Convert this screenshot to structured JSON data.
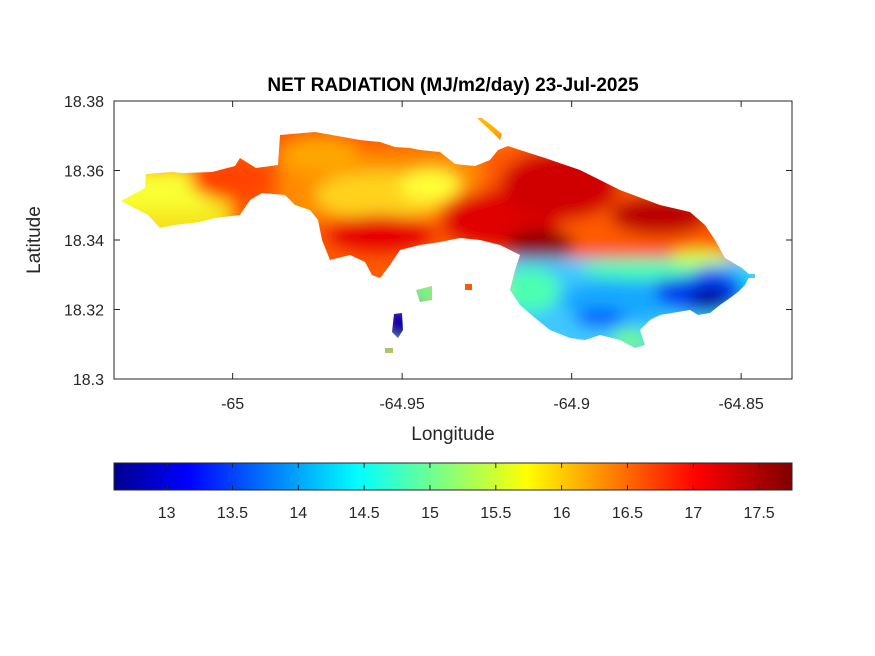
{
  "chart_data": {
    "type": "heatmap",
    "title": "NET RADIATION (MJ/m2/day) 23-Jul-2025",
    "xlabel": "Longitude",
    "ylabel": "Latitude",
    "xlim": [
      -65.035,
      -64.835
    ],
    "ylim": [
      18.3,
      18.38
    ],
    "xticks": [
      -65,
      -64.95,
      -64.9,
      -64.85
    ],
    "xtick_labels": [
      "-65",
      "-64.95",
      "-64.9",
      "-64.85"
    ],
    "yticks": [
      18.3,
      18.32,
      18.34,
      18.36,
      18.38
    ],
    "ytick_labels": [
      "18.3",
      "18.32",
      "18.34",
      "18.36",
      "18.38"
    ],
    "colormap": "jet",
    "color_range": [
      12.6,
      17.75
    ],
    "colorbar": {
      "location": "bottom",
      "ticks": [
        13,
        13.5,
        14,
        14.5,
        15,
        15.5,
        16,
        16.5,
        17,
        17.5
      ],
      "tick_labels": [
        "13",
        "13.5",
        "14",
        "14.5",
        "15",
        "15.5",
        "16",
        "16.5",
        "17",
        "17.5"
      ]
    },
    "regions": [
      {
        "description": "western-tip",
        "lon": -65.022,
        "lat": 18.348,
        "value": 15.6
      },
      {
        "description": "west-central",
        "lon": -64.995,
        "lat": 18.353,
        "value": 16.8
      },
      {
        "description": "northern-hills",
        "lon": -64.965,
        "lat": 18.357,
        "value": 16.6
      },
      {
        "description": "central-ridge-yellow",
        "lon": -64.953,
        "lat": 18.353,
        "value": 15.9
      },
      {
        "description": "central-south",
        "lon": -64.96,
        "lat": 18.342,
        "value": 17.0
      },
      {
        "description": "east-central-high",
        "lon": -64.92,
        "lat": 18.345,
        "value": 17.4
      },
      {
        "description": "north-east-high",
        "lon": -64.905,
        "lat": 18.355,
        "value": 17.3
      },
      {
        "description": "south-east-coast",
        "lon": -64.895,
        "lat": 18.322,
        "value": 14.4
      },
      {
        "description": "south-east-low",
        "lon": -64.86,
        "lat": 18.322,
        "value": 13.2
      },
      {
        "description": "isolated-islet",
        "lon": -64.954,
        "lat": 18.317,
        "value": 12.8
      }
    ]
  }
}
